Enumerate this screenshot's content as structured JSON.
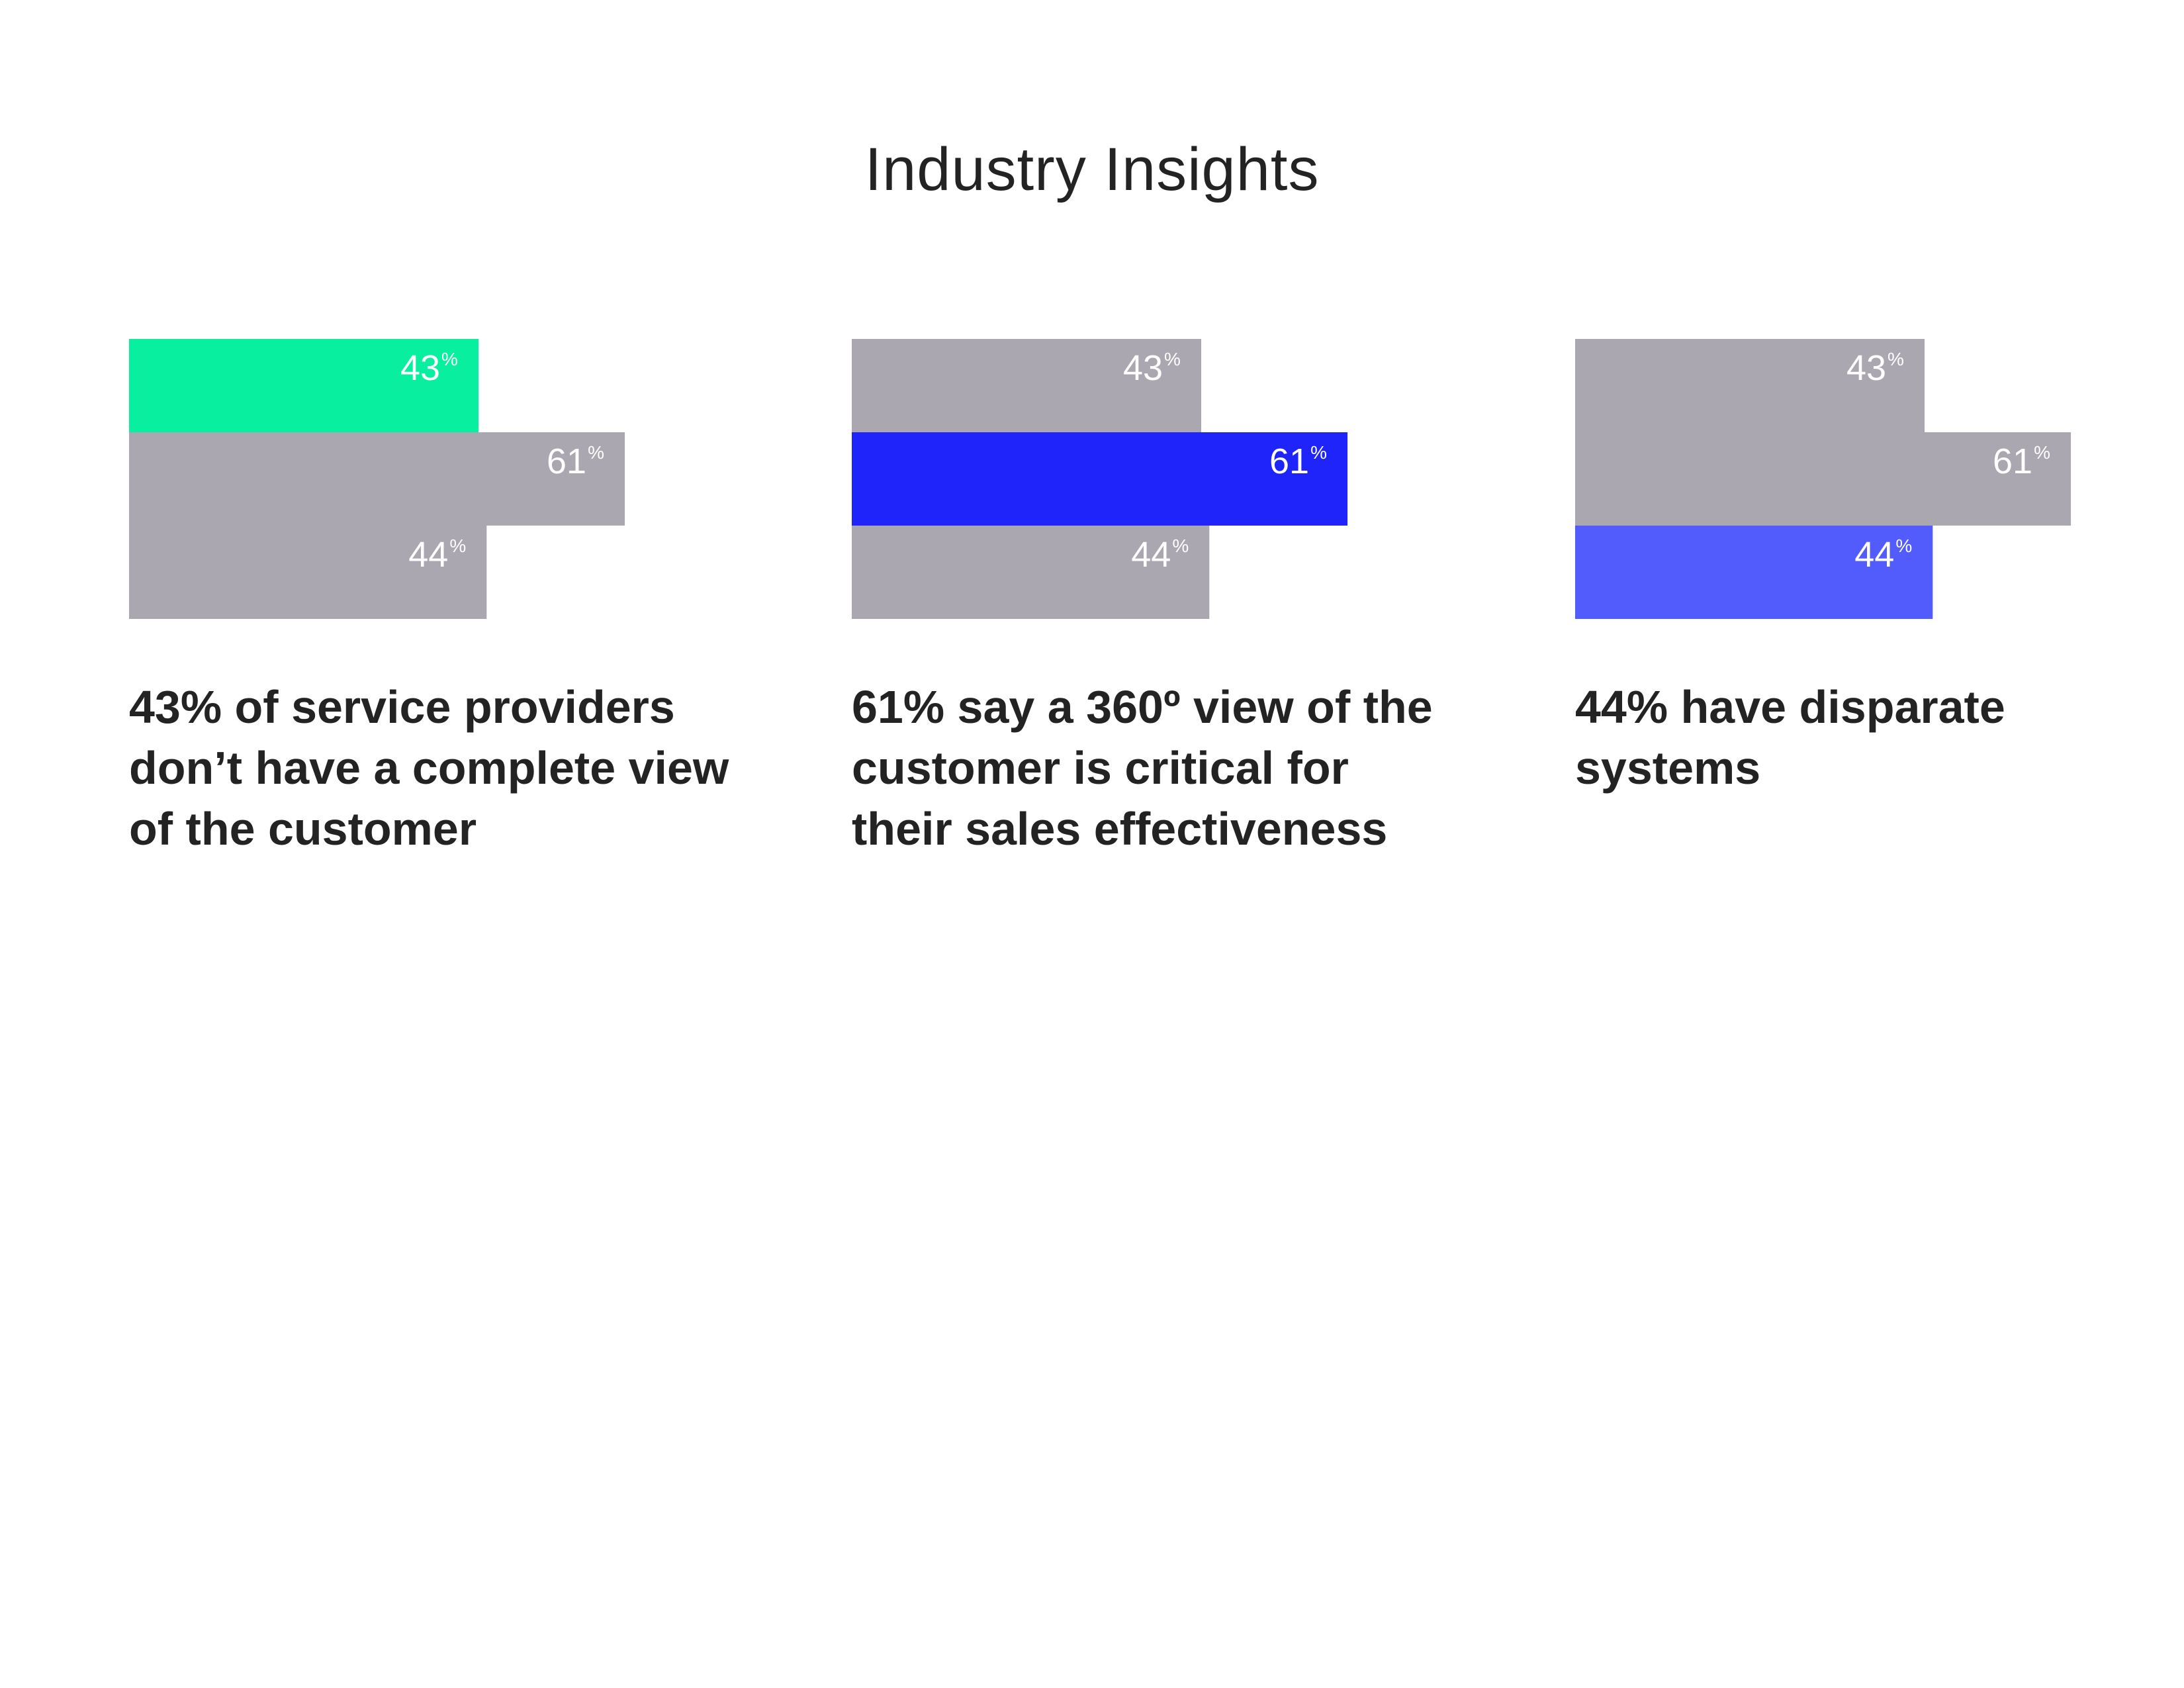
{
  "page": {
    "title": "Industry Insights"
  },
  "colors": {
    "bar_default": "#aaa7b0",
    "text": "#232323",
    "label": "#ffffff"
  },
  "chart_data": [
    {
      "type": "bar",
      "orientation": "horizontal",
      "categories": [
        "",
        "",
        ""
      ],
      "values": [
        43,
        61,
        44
      ],
      "labels": [
        "43",
        "61",
        "44"
      ],
      "unit": "%",
      "highlight_index": 0,
      "highlight_color": "#09efa0",
      "caption": "43% of service providers don’t have a complete view of the customer"
    },
    {
      "type": "bar",
      "orientation": "horizontal",
      "categories": [
        "",
        "",
        ""
      ],
      "values": [
        43,
        61,
        44
      ],
      "labels": [
        "43",
        "61",
        "44"
      ],
      "unit": "%",
      "highlight_index": 1,
      "highlight_color": "#1f24fb",
      "caption": "61% say a 360º view of the customer is critical for their sales effectiveness"
    },
    {
      "type": "bar",
      "orientation": "horizontal",
      "categories": [
        "",
        "",
        ""
      ],
      "values": [
        43,
        61,
        44
      ],
      "labels": [
        "43",
        "61",
        "44"
      ],
      "unit": "%",
      "highlight_index": 2,
      "highlight_color": "#525bfc",
      "caption": "44% have disparate systems"
    }
  ]
}
